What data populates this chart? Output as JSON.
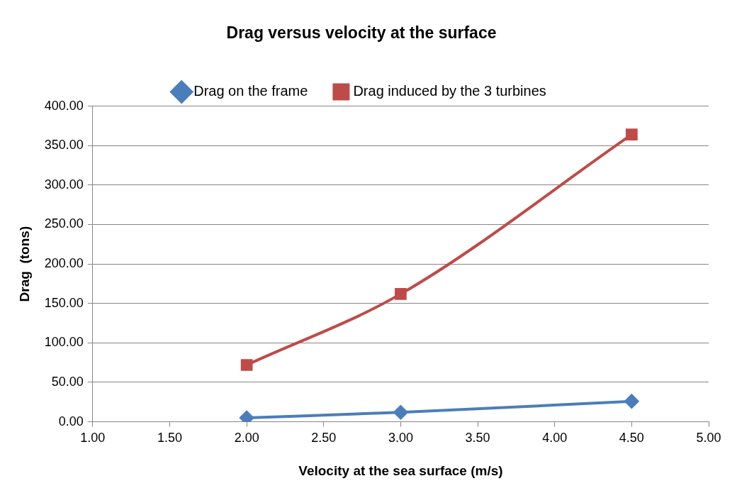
{
  "chart_data": {
    "type": "line",
    "title": "Drag versus velocity at the surface",
    "xlabel": "Velocity at the sea surface (m/s)",
    "ylabel": "Drag  (tons)",
    "x": [
      2,
      3,
      4.5
    ],
    "series": [
      {
        "name": "Drag on the frame",
        "color": "#4a7ebb",
        "values": [
          5,
          12,
          26
        ],
        "marker": "diamond"
      },
      {
        "name": "Drag induced by the 3 turbines",
        "color": "#be4b48",
        "values": [
          72,
          162,
          364
        ],
        "marker": "square"
      }
    ],
    "xlim": [
      1,
      5
    ],
    "xticks": [
      {
        "value": 1,
        "label": "1.00"
      },
      {
        "value": 1.5,
        "label": "1.50"
      },
      {
        "value": 2,
        "label": "2.00"
      },
      {
        "value": 2.5,
        "label": "2.50"
      },
      {
        "value": 3,
        "label": "3.00"
      },
      {
        "value": 3.5,
        "label": "3.50"
      },
      {
        "value": 4,
        "label": "4.00"
      },
      {
        "value": 4.5,
        "label": "4.50"
      },
      {
        "value": 5,
        "label": "5.00"
      }
    ],
    "ylim": [
      0,
      400
    ],
    "yticks": [
      {
        "value": 0,
        "label": "0.00"
      },
      {
        "value": 50,
        "label": "50.00"
      },
      {
        "value": 100,
        "label": "100.00"
      },
      {
        "value": 150,
        "label": "150.00"
      },
      {
        "value": 200,
        "label": "200.00"
      },
      {
        "value": 250,
        "label": "250.00"
      },
      {
        "value": 300,
        "label": "300.00"
      },
      {
        "value": 350,
        "label": "350.00"
      },
      {
        "value": 400,
        "label": "400.00"
      }
    ],
    "grid": "y",
    "legend": "top"
  }
}
